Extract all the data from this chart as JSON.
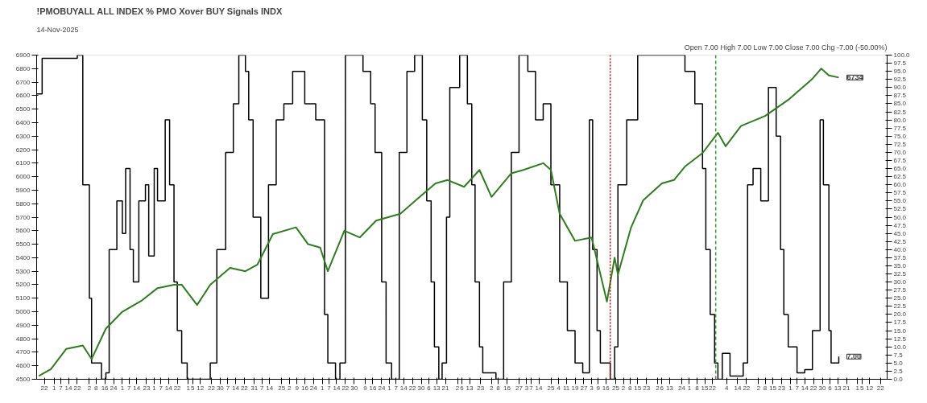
{
  "chart_data": {
    "type": "line",
    "title": "!PMOBUYALL ALL INDEX % PMO Xover BUY Signals INDX",
    "subtitle": "14-Nov-2025",
    "annotations": [
      "Open 7.00 High 7.00 Low 7.00 Close 7.00 Chg -7.00 (-50.00%)",
      "6734",
      "7.00"
    ],
    "xlim": [
      "2023-11-15",
      "2025-12-28"
    ],
    "xticks": [
      {
        "value": "2023-11-22",
        "label": "22"
      },
      {
        "value": "2023-12-01",
        "label": "1"
      },
      {
        "value": "2023-12-07",
        "label": "7"
      },
      {
        "value": "2023-12-14",
        "label": "14"
      },
      {
        "value": "2023-12-22",
        "label": "22"
      },
      {
        "value": "2024-01-02",
        "label": "2"
      },
      {
        "value": "2024-01-08",
        "label": "8"
      },
      {
        "value": "2024-01-16",
        "label": "16"
      },
      {
        "value": "2024-01-24",
        "label": "24"
      },
      {
        "value": "2024-02-01",
        "label": "1"
      },
      {
        "value": "2024-02-07",
        "label": "7"
      },
      {
        "value": "2024-02-14",
        "label": "14"
      },
      {
        "value": "2024-02-23",
        "label": "23"
      },
      {
        "value": "2024-03-01",
        "label": "1"
      },
      {
        "value": "2024-03-07",
        "label": "7"
      },
      {
        "value": "2024-03-14",
        "label": "14"
      },
      {
        "value": "2024-03-22",
        "label": "22"
      },
      {
        "value": "2024-04-01",
        "label": "1"
      },
      {
        "value": "2024-04-05",
        "label": "5"
      },
      {
        "value": "2024-04-12",
        "label": "12"
      },
      {
        "value": "2024-04-22",
        "label": "22"
      },
      {
        "value": "2024-04-30",
        "label": "30"
      },
      {
        "value": "2024-05-07",
        "label": "7"
      },
      {
        "value": "2024-05-14",
        "label": "14"
      },
      {
        "value": "2024-05-22",
        "label": "22"
      },
      {
        "value": "2024-05-31",
        "label": "31"
      },
      {
        "value": "2024-06-07",
        "label": "7"
      },
      {
        "value": "2024-06-14",
        "label": "14"
      },
      {
        "value": "2024-06-25",
        "label": "25"
      },
      {
        "value": "2024-07-02",
        "label": "2"
      },
      {
        "value": "2024-07-09",
        "label": "9"
      },
      {
        "value": "2024-07-16",
        "label": "16"
      },
      {
        "value": "2024-07-24",
        "label": "24"
      },
      {
        "value": "2024-08-01",
        "label": "1"
      },
      {
        "value": "2024-08-07",
        "label": "7"
      },
      {
        "value": "2024-08-14",
        "label": "14"
      },
      {
        "value": "2024-08-22",
        "label": "22"
      },
      {
        "value": "2024-08-30",
        "label": "30"
      },
      {
        "value": "2024-09-09",
        "label": "9"
      },
      {
        "value": "2024-09-16",
        "label": "16"
      },
      {
        "value": "2024-09-24",
        "label": "24"
      },
      {
        "value": "2024-10-01",
        "label": "1"
      },
      {
        "value": "2024-10-07",
        "label": "7"
      },
      {
        "value": "2024-10-14",
        "label": "14"
      },
      {
        "value": "2024-10-22",
        "label": "22"
      },
      {
        "value": "2024-10-30",
        "label": "30"
      },
      {
        "value": "2024-11-06",
        "label": "6"
      },
      {
        "value": "2024-11-13",
        "label": "13"
      },
      {
        "value": "2024-11-21",
        "label": "21"
      },
      {
        "value": "2024-12-02",
        "label": "2"
      },
      {
        "value": "2024-12-06",
        "label": "6"
      },
      {
        "value": "2024-12-13",
        "label": "13"
      },
      {
        "value": "2024-12-23",
        "label": "23"
      },
      {
        "value": "2025-01-02",
        "label": "2"
      },
      {
        "value": "2025-01-08",
        "label": "8"
      },
      {
        "value": "2025-01-16",
        "label": "16"
      },
      {
        "value": "2025-01-27",
        "label": "27"
      },
      {
        "value": "2025-02-03",
        "label": "3"
      },
      {
        "value": "2025-02-07",
        "label": "7"
      },
      {
        "value": "2025-02-14",
        "label": "14"
      },
      {
        "value": "2025-02-25",
        "label": "25"
      },
      {
        "value": "2025-03-04",
        "label": "4"
      },
      {
        "value": "2025-03-11",
        "label": "11"
      },
      {
        "value": "2025-03-19",
        "label": "19"
      },
      {
        "value": "2025-03-27",
        "label": "27"
      },
      {
        "value": "2025-04-03",
        "label": "3"
      },
      {
        "value": "2025-04-09",
        "label": "9"
      },
      {
        "value": "2025-04-16",
        "label": "16"
      },
      {
        "value": "2025-04-25",
        "label": "25"
      },
      {
        "value": "2025-05-02",
        "label": "2"
      },
      {
        "value": "2025-05-08",
        "label": "8"
      },
      {
        "value": "2025-05-15",
        "label": "15"
      },
      {
        "value": "2025-05-23",
        "label": "23"
      },
      {
        "value": "2025-06-02",
        "label": "2"
      },
      {
        "value": "2025-06-06",
        "label": "6"
      },
      {
        "value": "2025-06-13",
        "label": "13"
      },
      {
        "value": "2025-06-24",
        "label": "24"
      },
      {
        "value": "2025-07-01",
        "label": "1"
      },
      {
        "value": "2025-07-08",
        "label": "8"
      },
      {
        "value": "2025-07-15",
        "label": "15"
      },
      {
        "value": "2025-07-22",
        "label": "22"
      },
      {
        "value": "2025-08-04",
        "label": "4"
      },
      {
        "value": "2025-08-14",
        "label": "14"
      },
      {
        "value": "2025-08-22",
        "label": "22"
      },
      {
        "value": "2025-09-02",
        "label": "2"
      },
      {
        "value": "2025-09-08",
        "label": "8"
      },
      {
        "value": "2025-09-15",
        "label": "15"
      },
      {
        "value": "2025-09-23",
        "label": "23"
      },
      {
        "value": "2025-10-01",
        "label": "1"
      },
      {
        "value": "2025-10-07",
        "label": "7"
      },
      {
        "value": "2025-10-14",
        "label": "14"
      },
      {
        "value": "2025-10-22",
        "label": "22"
      },
      {
        "value": "2025-10-30",
        "label": "30"
      },
      {
        "value": "2025-11-06",
        "label": "6"
      },
      {
        "value": "2025-11-13",
        "label": "13"
      },
      {
        "value": "2025-11-21",
        "label": "21"
      },
      {
        "value": "2025-12-01",
        "label": "1"
      },
      {
        "value": "2025-12-05",
        "label": "5"
      },
      {
        "value": "2025-12-12",
        "label": "12"
      },
      {
        "value": "2025-12-22",
        "label": "22"
      }
    ],
    "ylim": [
      4500,
      6900
    ],
    "yticks": [
      4500,
      4600,
      4700,
      4800,
      4900,
      5000,
      5100,
      5200,
      5300,
      5400,
      5500,
      5600,
      5700,
      5800,
      5900,
      6000,
      6100,
      6200,
      6300,
      6400,
      6500,
      6600,
      6700,
      6800,
      6900
    ],
    "y2lim": [
      0,
      100
    ],
    "y2ticks": [
      {
        "value": 0,
        "label": "0.0"
      },
      {
        "value": 2.5,
        "label": "2.5"
      },
      {
        "value": 5,
        "label": "5.0"
      },
      {
        "value": 7.5,
        "label": "7.5"
      },
      {
        "value": 10,
        "label": "10.0"
      },
      {
        "value": 12.5,
        "label": "12.5"
      },
      {
        "value": 15,
        "label": "15.0"
      },
      {
        "value": 17.5,
        "label": "17.5"
      },
      {
        "value": 20,
        "label": "20.0"
      },
      {
        "value": 22.5,
        "label": "22.5"
      },
      {
        "value": 25,
        "label": "25.0"
      },
      {
        "value": 27.5,
        "label": "27.5"
      },
      {
        "value": 30,
        "label": "30.0"
      },
      {
        "value": 32.5,
        "label": "32.5"
      },
      {
        "value": 35,
        "label": "35.0"
      },
      {
        "value": 37.5,
        "label": "37.5"
      },
      {
        "value": 40,
        "label": "40.0"
      },
      {
        "value": 42.5,
        "label": "42.5"
      },
      {
        "value": 45,
        "label": "45.0"
      },
      {
        "value": 47.5,
        "label": "47.5"
      },
      {
        "value": 50,
        "label": "50.0"
      },
      {
        "value": 52.5,
        "label": "52.5"
      },
      {
        "value": 55,
        "label": "55.0"
      },
      {
        "value": 57.5,
        "label": "57.5"
      },
      {
        "value": 60,
        "label": "60.0"
      },
      {
        "value": 62.5,
        "label": "62.5"
      },
      {
        "value": 65,
        "label": "65.0"
      },
      {
        "value": 67.5,
        "label": "67.5"
      },
      {
        "value": 70,
        "label": "70.0"
      },
      {
        "value": 72.5,
        "label": "72.5"
      },
      {
        "value": 75,
        "label": "75.0"
      },
      {
        "value": 77.5,
        "label": "77.5"
      },
      {
        "value": 80,
        "label": "80.0"
      },
      {
        "value": 82.5,
        "label": "82.5"
      },
      {
        "value": 85,
        "label": "85.0"
      },
      {
        "value": 87.5,
        "label": "87.5"
      },
      {
        "value": 90,
        "label": "90.0"
      },
      {
        "value": 92.5,
        "label": "92.5"
      },
      {
        "value": 95,
        "label": "95.0"
      },
      {
        "value": 97.5,
        "label": "97.5"
      },
      {
        "value": 100,
        "label": "100.0"
      }
    ],
    "ref_lines": [
      {
        "axis": "x",
        "value": "2025-04-20",
        "color": "#cc0000",
        "line_style": "dotted"
      },
      {
        "axis": "x",
        "value": "2025-07-25",
        "color": "#339933",
        "line_style": "dashed"
      }
    ],
    "series": [
      {
        "type": "step",
        "axis": "y2",
        "color": "#000000",
        "x": [
          "2023-11-15",
          "2023-11-20",
          "2023-12-22",
          "2023-12-27",
          "2024-01-02",
          "2024-01-04",
          "2024-01-13",
          "2024-01-17",
          "2024-01-20",
          "2024-01-27",
          "2024-02-01",
          "2024-02-04",
          "2024-02-08",
          "2024-02-11",
          "2024-02-16",
          "2024-02-22",
          "2024-02-25",
          "2024-03-01",
          "2024-03-04",
          "2024-03-11",
          "2024-03-15",
          "2024-03-19",
          "2024-03-22",
          "2024-03-26",
          "2024-03-31",
          "2024-04-13",
          "2024-04-21",
          "2024-04-27",
          "2024-05-05",
          "2024-05-12",
          "2024-05-17",
          "2024-05-23",
          "2024-05-26",
          "2024-05-30",
          "2024-06-06",
          "2024-06-13",
          "2024-06-20",
          "2024-06-27",
          "2024-07-05",
          "2024-07-16",
          "2024-07-26",
          "2024-08-03",
          "2024-08-06",
          "2024-08-13",
          "2024-08-17",
          "2024-08-22",
          "2024-09-07",
          "2024-09-14",
          "2024-09-18",
          "2024-09-24",
          "2024-09-28",
          "2024-10-03",
          "2024-10-10",
          "2024-10-17",
          "2024-10-24",
          "2024-10-31",
          "2024-11-04",
          "2024-11-08",
          "2024-11-11",
          "2024-11-15",
          "2024-11-18",
          "2024-11-22",
          "2024-11-25",
          "2024-12-04",
          "2024-12-11",
          "2024-12-15",
          "2024-12-18",
          "2024-12-22",
          "2024-12-25",
          "2025-01-06",
          "2025-01-13",
          "2025-01-20",
          "2025-01-27",
          "2025-02-04",
          "2025-02-11",
          "2025-02-18",
          "2025-02-25",
          "2025-03-05",
          "2025-03-12",
          "2025-03-19",
          "2025-03-26",
          "2025-04-01",
          "2025-04-04",
          "2025-04-08",
          "2025-04-11",
          "2025-04-20",
          "2025-04-24",
          "2025-04-27",
          "2025-05-05",
          "2025-05-15",
          "2025-06-17",
          "2025-06-27",
          "2025-07-06",
          "2025-07-13",
          "2025-07-16",
          "2025-07-20",
          "2025-07-24",
          "2025-07-27",
          "2025-07-31",
          "2025-08-07",
          "2025-08-19",
          "2025-08-23",
          "2025-08-28",
          "2025-09-04",
          "2025-09-11",
          "2025-09-18",
          "2025-09-22",
          "2025-09-25",
          "2025-09-29",
          "2025-10-07",
          "2025-10-14",
          "2025-10-21",
          "2025-10-28",
          "2025-10-31",
          "2025-11-05",
          "2025-11-07",
          "2025-11-14"
        ],
        "values": [
          88,
          99,
          100,
          60,
          25,
          5,
          0,
          2,
          40,
          55,
          45,
          65,
          40,
          30,
          55,
          60,
          38,
          65,
          55,
          80,
          60,
          30,
          15,
          5,
          0,
          0,
          5,
          40,
          70,
          85,
          100,
          95,
          80,
          50,
          25,
          60,
          80,
          85,
          95,
          85,
          80,
          20,
          5,
          0,
          5,
          100,
          95,
          85,
          70,
          30,
          5,
          0,
          70,
          95,
          100,
          80,
          55,
          30,
          10,
          0,
          5,
          50,
          90,
          100,
          85,
          60,
          30,
          10,
          2,
          0,
          30,
          70,
          100,
          95,
          80,
          85,
          60,
          30,
          15,
          5,
          2,
          80,
          40,
          15,
          5,
          0,
          10,
          60,
          80,
          100,
          100,
          95,
          85,
          65,
          40,
          20,
          5,
          0,
          8,
          1,
          5,
          60,
          65,
          55,
          90,
          75,
          40,
          20,
          10,
          2,
          3,
          15,
          80,
          60,
          15,
          5,
          7
        ]
      },
      {
        "color": "#2e7d1f",
        "x": [
          "2023-11-17",
          "2023-11-28",
          "2023-12-12",
          "2023-12-27",
          "2024-01-04",
          "2024-01-17",
          "2024-02-01",
          "2024-02-19",
          "2024-03-04",
          "2024-03-19",
          "2024-03-26",
          "2024-04-09",
          "2024-04-21",
          "2024-05-09",
          "2024-05-23",
          "2024-06-03",
          "2024-06-17",
          "2024-07-08",
          "2024-07-19",
          "2024-07-30",
          "2024-08-06",
          "2024-08-21",
          "2024-09-04",
          "2024-09-19",
          "2024-10-11",
          "2024-10-25",
          "2024-11-12",
          "2024-11-23",
          "2024-12-08",
          "2024-12-22",
          "2025-01-02",
          "2025-01-20",
          "2025-01-31",
          "2025-02-18",
          "2025-02-25",
          "2025-03-05",
          "2025-03-19",
          "2025-04-03",
          "2025-04-06",
          "2025-04-17",
          "2025-04-24",
          "2025-04-27",
          "2025-05-09",
          "2025-05-20",
          "2025-06-06",
          "2025-06-17",
          "2025-06-27",
          "2025-07-13",
          "2025-07-27",
          "2025-08-03",
          "2025-08-17",
          "2025-09-08",
          "2025-09-30",
          "2025-10-21",
          "2025-10-29",
          "2025-11-05",
          "2025-11-14"
        ],
        "values": [
          4525,
          4575,
          4725,
          4750,
          4650,
          4875,
          5000,
          5085,
          5175,
          5200,
          5200,
          5050,
          5200,
          5325,
          5300,
          5350,
          5575,
          5625,
          5500,
          5475,
          5300,
          5600,
          5550,
          5675,
          5725,
          5825,
          5950,
          5975,
          5925,
          6050,
          5850,
          6025,
          6050,
          6100,
          6050,
          5725,
          5525,
          5550,
          5450,
          5075,
          5400,
          5275,
          5625,
          5825,
          5950,
          5975,
          6075,
          6175,
          6325,
          6225,
          6375,
          6450,
          6575,
          6725,
          6800,
          6750,
          6734
        ]
      }
    ]
  }
}
